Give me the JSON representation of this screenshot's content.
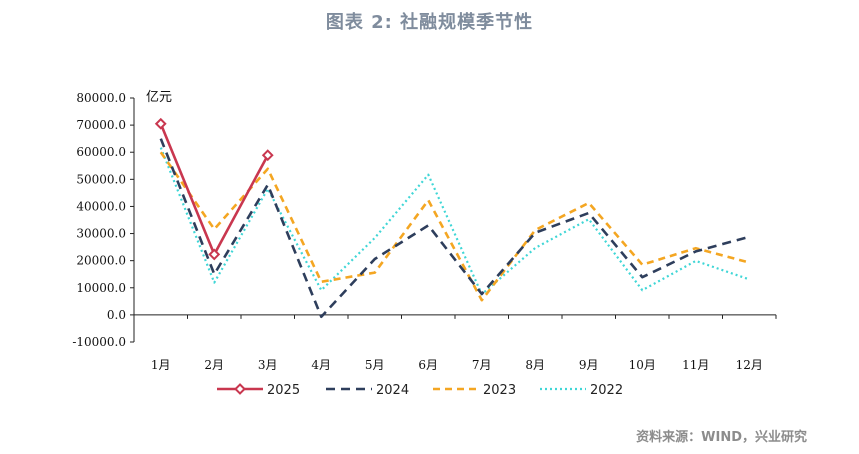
{
  "title": "图表 2:   社融规模季节性",
  "source": "资料来源：WIND，兴业研究",
  "chart_data": {
    "type": "line",
    "unit_label": "亿元",
    "categories": [
      "1月",
      "2月",
      "3月",
      "4月",
      "5月",
      "6月",
      "7月",
      "8月",
      "9月",
      "10月",
      "11月",
      "12月"
    ],
    "ylim": [
      -10000,
      80000
    ],
    "yticks": [
      "80000.0",
      "70000.0",
      "60000.0",
      "50000.0",
      "40000.0",
      "30000.0",
      "20000.0",
      "10000.0",
      "0.0",
      "-10000.0"
    ],
    "grid": false,
    "legend_position": "bottom",
    "series": [
      {
        "name": "2025",
        "color": "#c9374f",
        "style": "solid-marker",
        "values": [
          70500,
          22300,
          58900,
          null,
          null,
          null,
          null,
          null,
          null,
          null,
          null,
          null
        ]
      },
      {
        "name": "2024",
        "color": "#2e3e5c",
        "style": "dashed",
        "values": [
          65000,
          15000,
          48000,
          -700,
          20600,
          33000,
          7700,
          30300,
          37600,
          13900,
          23400,
          28800
        ]
      },
      {
        "name": "2023",
        "color": "#f4a622",
        "style": "dashed-light",
        "values": [
          60000,
          31600,
          53900,
          12200,
          15600,
          42300,
          5400,
          31300,
          41300,
          18500,
          24600,
          19300
        ]
      },
      {
        "name": "2022",
        "color": "#3fd6d6",
        "style": "dotted",
        "values": [
          61700,
          11900,
          46500,
          9100,
          28400,
          51700,
          7600,
          24700,
          35300,
          9100,
          19900,
          13100
        ]
      }
    ]
  }
}
